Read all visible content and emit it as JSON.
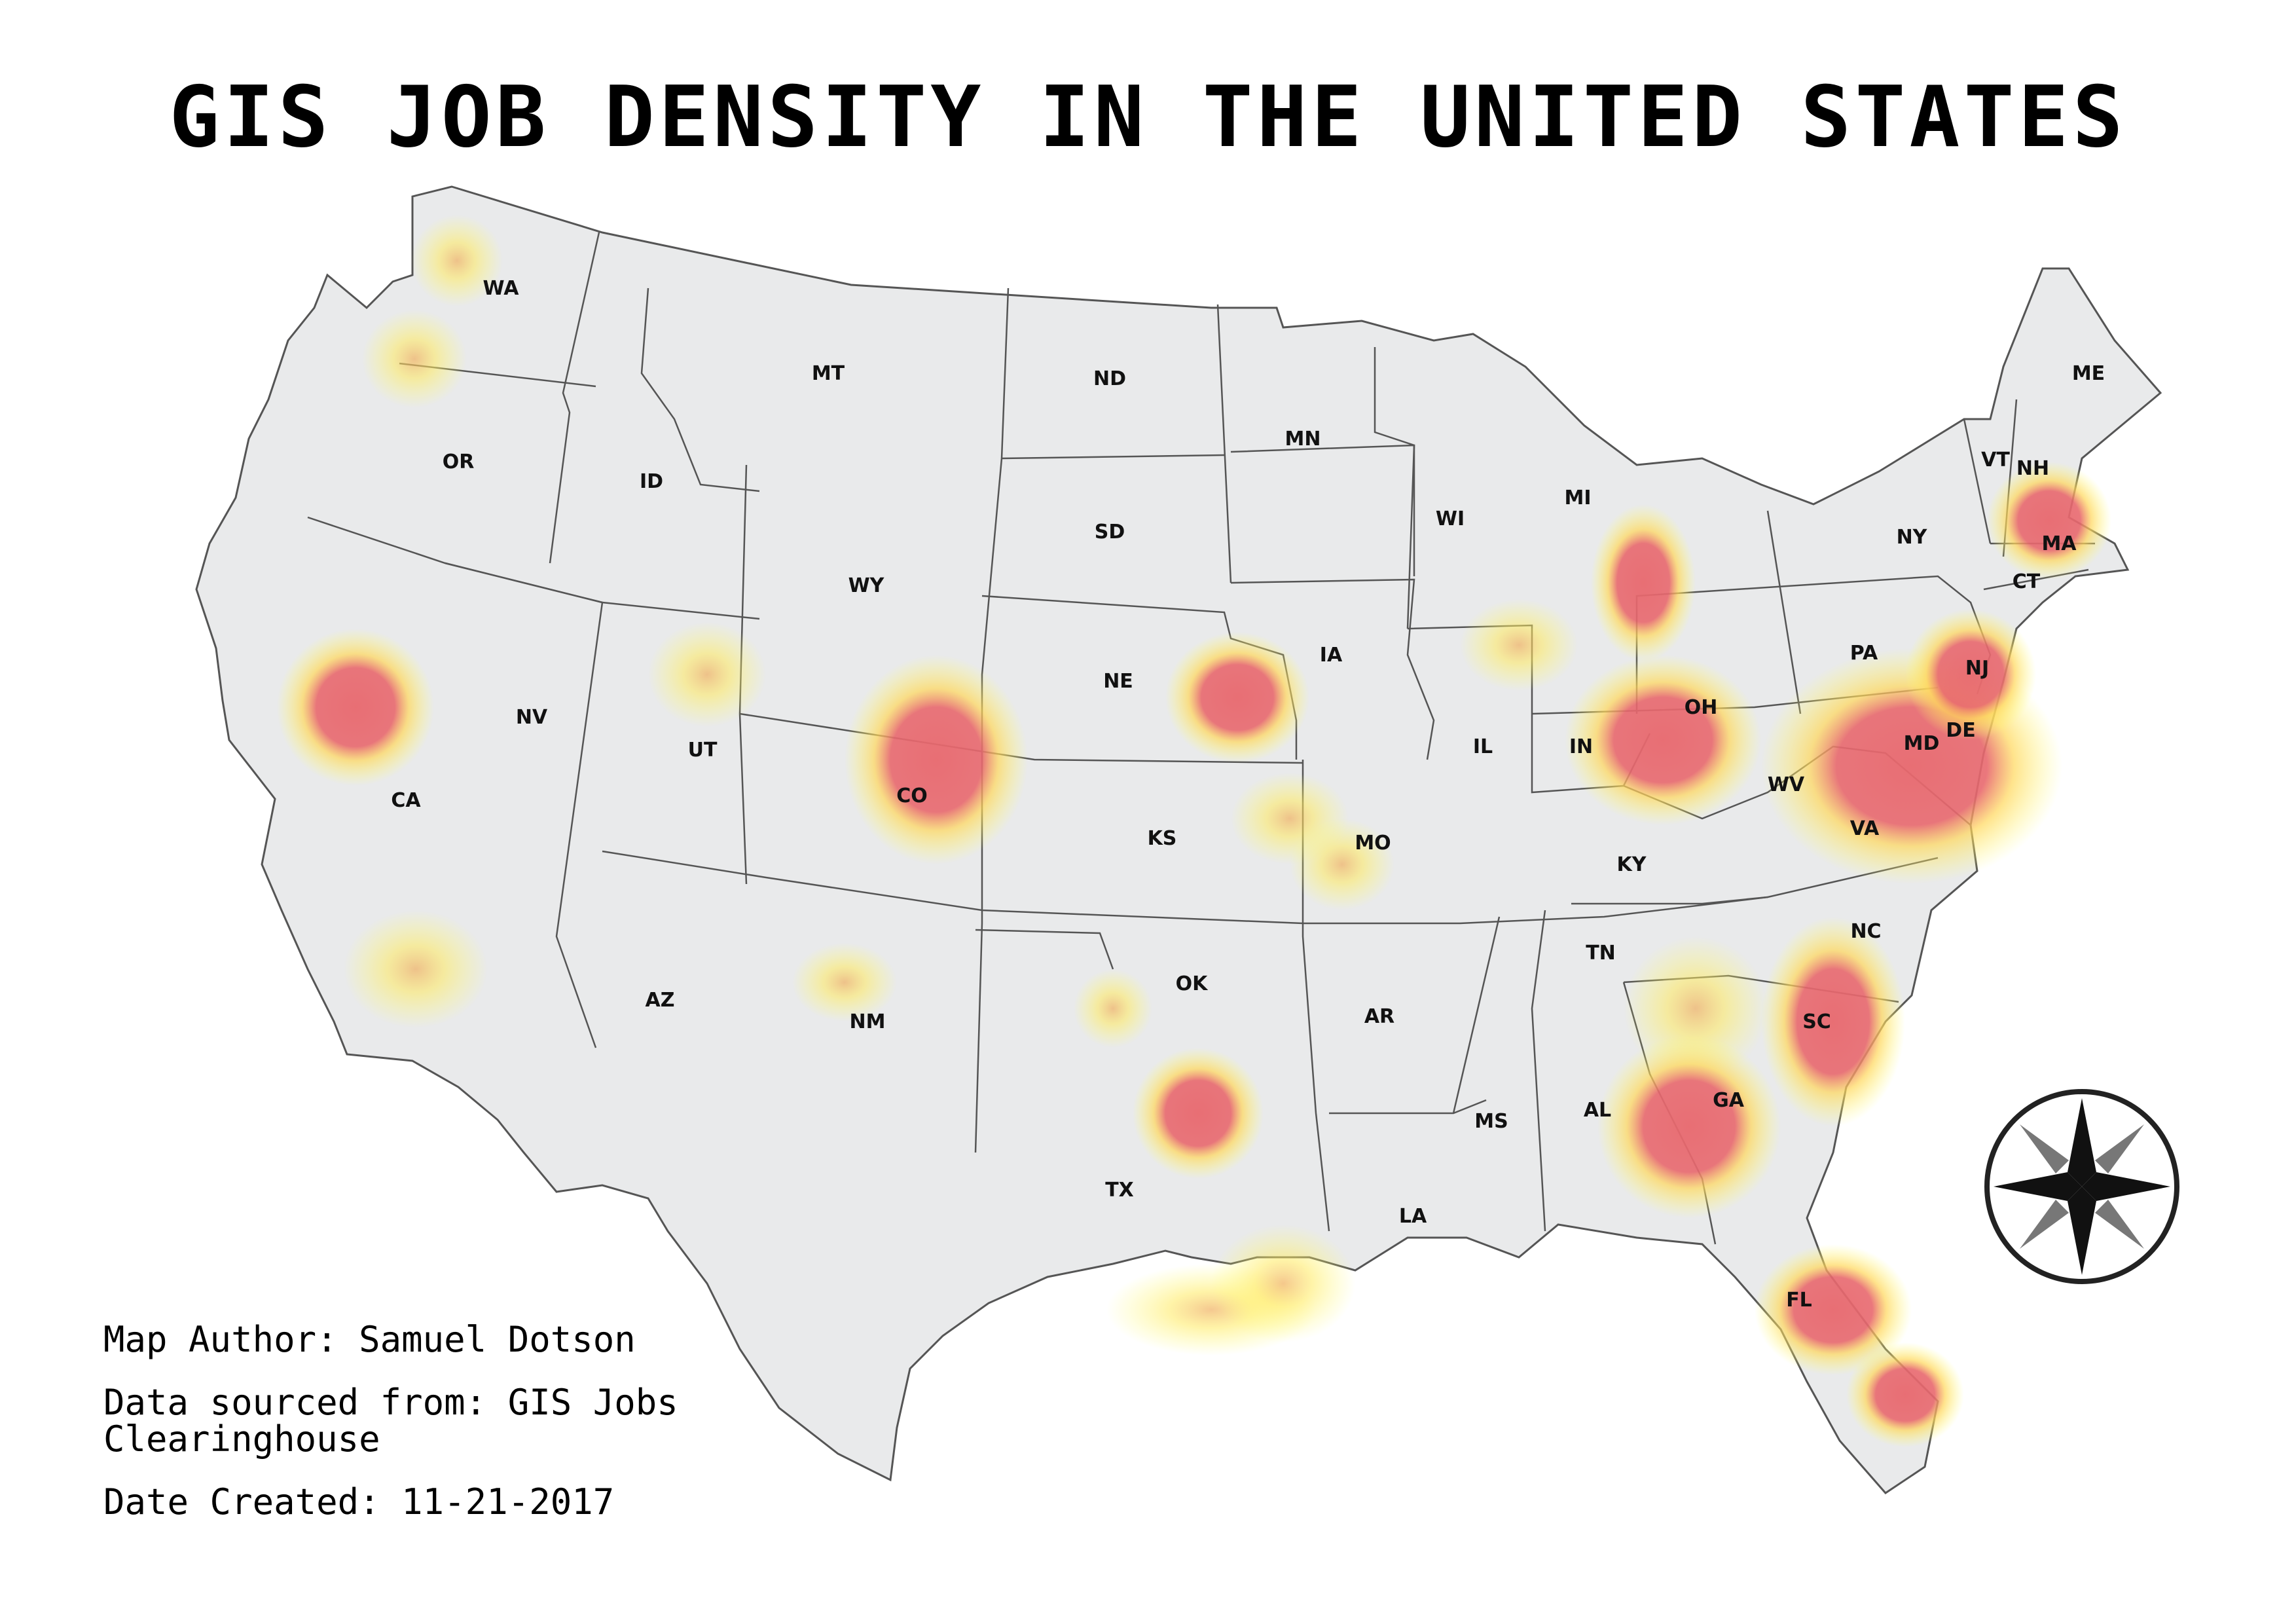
{
  "title": "GIS JOB DENSITY IN THE UNITED STATES",
  "credits": {
    "author": "Map Author: Samuel Dotson",
    "source": "Data sourced from: GIS Jobs Clearinghouse",
    "date": "Date Created: 11-21-2017"
  },
  "state_labels": [
    "WA",
    "OR",
    "CA",
    "ID",
    "NV",
    "MT",
    "WY",
    "UT",
    "AZ",
    "CO",
    "NM",
    "ND",
    "SD",
    "NE",
    "KS",
    "OK",
    "TX",
    "MN",
    "IA",
    "MO",
    "AR",
    "LA",
    "WI",
    "IL",
    "MS",
    "MI",
    "IN",
    "KY",
    "TN",
    "AL",
    "OH",
    "WV",
    "VA",
    "NC",
    "SC",
    "GA",
    "FL",
    "PA",
    "NY",
    "MD",
    "DE",
    "NJ",
    "VT",
    "NH",
    "ME",
    "MA",
    "CT"
  ],
  "icons": {
    "compass": "compass-rose-icon"
  },
  "colors": {
    "land": "#e9eaeb",
    "border": "#444444",
    "heat_high": "#e8686e",
    "heat_low": "#ffff6a"
  }
}
